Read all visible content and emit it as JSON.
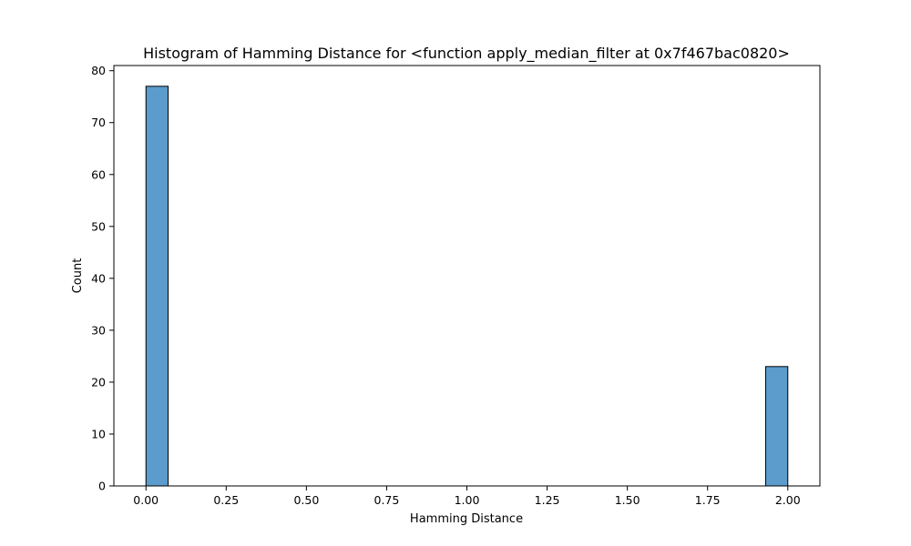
{
  "chart_data": {
    "type": "bar",
    "title": "Histogram of Hamming Distance for <function apply_median_filter at 0x7f467bac0820>",
    "xlabel": "Hamming Distance",
    "ylabel": "Count",
    "xlim": [
      -0.1,
      2.1
    ],
    "ylim": [
      0,
      81
    ],
    "bin_width": 0.069,
    "bars": [
      {
        "x_start": 0.0,
        "x_end": 0.069,
        "count": 77
      },
      {
        "x_start": 1.931,
        "x_end": 2.0,
        "count": 23
      }
    ],
    "x_ticks": [
      "0.00",
      "0.25",
      "0.50",
      "0.75",
      "1.00",
      "1.25",
      "1.50",
      "1.75",
      "2.00"
    ],
    "x_tick_values": [
      0.0,
      0.25,
      0.5,
      0.75,
      1.0,
      1.25,
      1.5,
      1.75,
      2.0
    ],
    "y_ticks": [
      "0",
      "10",
      "20",
      "30",
      "40",
      "50",
      "60",
      "70",
      "80"
    ],
    "y_tick_values": [
      0,
      10,
      20,
      30,
      40,
      50,
      60,
      70,
      80
    ],
    "grid": false,
    "colors": {
      "bar_fill": "#5b9ccc",
      "bar_edge": "#000000",
      "axes": "#000000"
    }
  }
}
